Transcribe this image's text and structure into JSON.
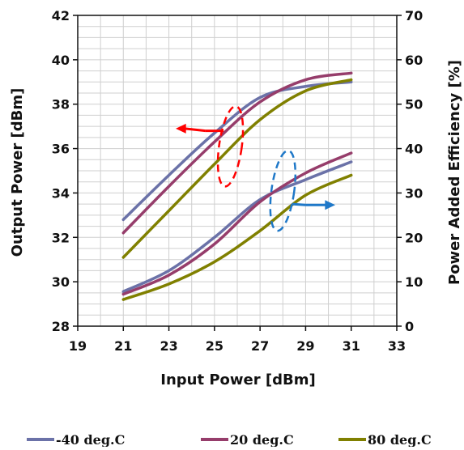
{
  "chart_data": {
    "type": "line",
    "xlabel": "Input Power [dBm]",
    "ylabel": "Output Power [dBm]",
    "y2label": "Power Added Efficiency [%]",
    "xlim": [
      19,
      33
    ],
    "ylim": [
      28,
      42
    ],
    "y2lim": [
      0,
      70
    ],
    "xticks": [
      "19",
      "21",
      "23",
      "25",
      "27",
      "29",
      "31",
      "33"
    ],
    "yticks": [
      "28",
      "30",
      "32",
      "34",
      "36",
      "38",
      "40",
      "42"
    ],
    "y2ticks": [
      "0",
      "10",
      "20",
      "30",
      "40",
      "50",
      "60",
      "70"
    ],
    "grid": true,
    "legend_position": "bottom",
    "x": [
      21,
      23,
      25,
      27,
      29,
      31
    ],
    "series": [
      {
        "name": "-40 deg.C",
        "color": "#6b72a8",
        "output_power": [
          32.8,
          34.8,
          36.7,
          38.3,
          38.8,
          39.0
        ],
        "pae": [
          7.8,
          12.5,
          20.0,
          28.5,
          33.0,
          37.0
        ]
      },
      {
        "name": "20 deg.C",
        "color": "#963d6b",
        "output_power": [
          32.2,
          34.3,
          36.3,
          38.1,
          39.1,
          39.4
        ],
        "pae": [
          7.2,
          11.5,
          18.5,
          28.0,
          34.5,
          39.0
        ]
      },
      {
        "name": "80 deg.C",
        "color": "#808000",
        "output_power": [
          31.1,
          33.2,
          35.3,
          37.3,
          38.6,
          39.1
        ],
        "pae": [
          6.0,
          9.5,
          14.5,
          21.5,
          29.5,
          34.0
        ]
      }
    ],
    "annotations": [
      {
        "label": "left-axis-marker",
        "color": "#ff0000",
        "direction": "left"
      },
      {
        "label": "right-axis-marker",
        "color": "#1f78c8",
        "direction": "right"
      }
    ]
  }
}
